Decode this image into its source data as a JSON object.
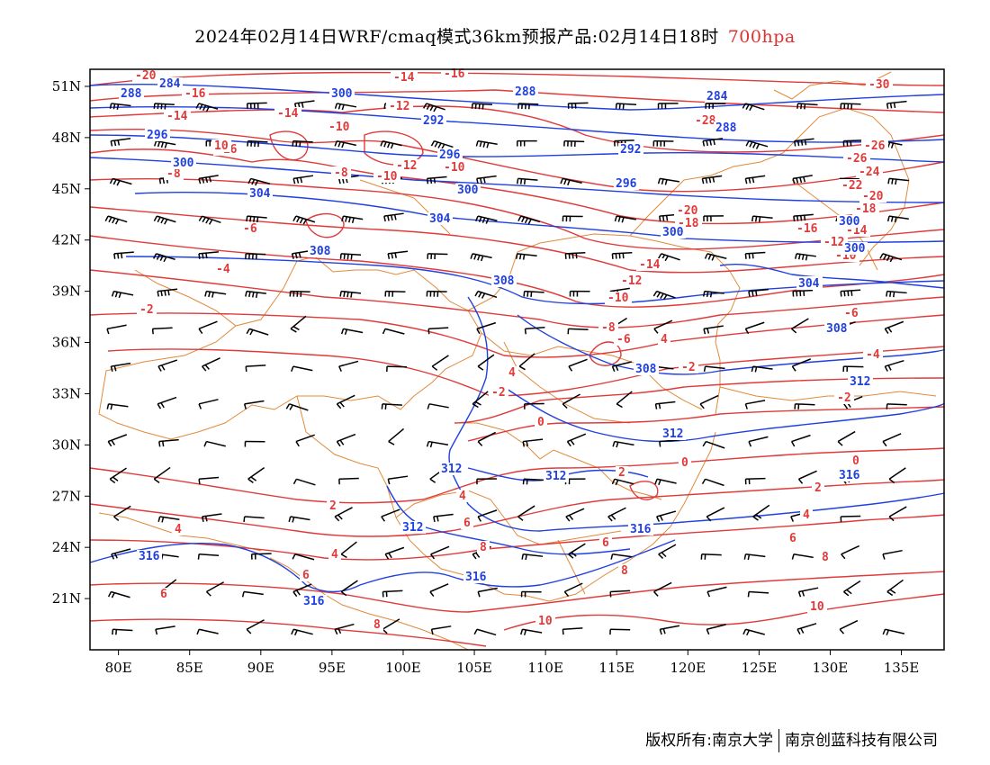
{
  "title": {
    "main": "2024年02月14日WRF/cmaq模式36km预报产品:02月14日18时",
    "level": "700hpa"
  },
  "map": {
    "lon_range": [
      78,
      138
    ],
    "lat_range": [
      18,
      52
    ],
    "x_ticks": [
      "80E",
      "85E",
      "90E",
      "95E",
      "100E",
      "105E",
      "110E",
      "115E",
      "120E",
      "125E",
      "130E",
      "135E"
    ],
    "y_ticks": [
      "51N",
      "48N",
      "45N",
      "42N",
      "39N",
      "36N",
      "33N",
      "30N",
      "27N",
      "24N",
      "21N"
    ],
    "colors": {
      "temperature": "#e03a3a",
      "geopotential": "#2040e0",
      "border": "#e08a3a",
      "wind": "#000000"
    },
    "temperature_labels": [
      "-30",
      "-28",
      "-26",
      "-24",
      "-22",
      "-20",
      "-18",
      "-16",
      "-14",
      "-12",
      "-10",
      "-8",
      "-6",
      "-4",
      "-2",
      "0",
      "2",
      "4",
      "6",
      "8",
      "10"
    ],
    "height_labels": [
      "284",
      "288",
      "292",
      "296",
      "300",
      "304",
      "308",
      "312",
      "316"
    ]
  },
  "footer": {
    "left": "版权所有:南京大学",
    "right": "南京创蓝科技有限公司"
  }
}
